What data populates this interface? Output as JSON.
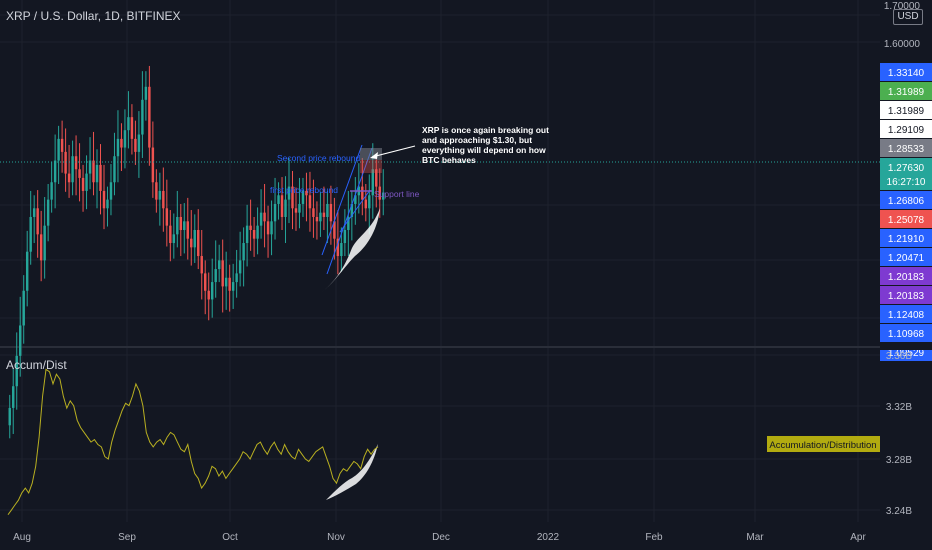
{
  "header": {
    "symbol_title": "XRP / U.S. Dollar, 1D, BITFINEX",
    "currency": "USD"
  },
  "indicator": {
    "title": "Accum/Dist",
    "badge_label": "Accumulation/Distribution",
    "badge_color": "#b2ab10",
    "line_color": "#b9b021"
  },
  "price_axis": {
    "ticks": [
      "1.70000",
      "1.60000"
    ],
    "tags": [
      {
        "text": "1.33140",
        "bg": "#2962ff",
        "fg": "#ffffff"
      },
      {
        "text": "1.31989",
        "bg": "#4caf50",
        "fg": "#ffffff"
      },
      {
        "text": "1.31989",
        "bg": "#ffffff",
        "fg": "#131722"
      },
      {
        "text": "1.29109",
        "bg": "#ffffff",
        "fg": "#131722"
      },
      {
        "text": "1.28533",
        "bg": "#787b86",
        "fg": "#ffffff"
      },
      {
        "text": "1.27630",
        "bg": "#26a69a",
        "fg": "#ffffff",
        "sub": "16:27:10"
      },
      {
        "text": "1.26806",
        "bg": "#2962ff",
        "fg": "#ffffff"
      },
      {
        "text": "1.25078",
        "bg": "#ef5350",
        "fg": "#ffffff"
      },
      {
        "text": "1.21910",
        "bg": "#2962ff",
        "fg": "#ffffff"
      },
      {
        "text": "1.20471",
        "bg": "#2962ff",
        "fg": "#ffffff"
      },
      {
        "text": "1.20183",
        "bg": "#7e3ad1",
        "fg": "#ffffff"
      },
      {
        "text": "1.20183",
        "bg": "#7e3ad1",
        "fg": "#ffffff"
      },
      {
        "text": "1.12408",
        "bg": "#2962ff",
        "fg": "#ffffff"
      },
      {
        "text": "1.10968",
        "bg": "#2962ff",
        "fg": "#ffffff"
      },
      {
        "text": "1.09529",
        "bg": "#2962ff",
        "fg": "#ffffff"
      }
    ]
  },
  "ad_axis": {
    "ticks": [
      "3.36B",
      "3.32B",
      "3.28B",
      "3.24B"
    ]
  },
  "time_axis": {
    "ticks": [
      "Aug",
      "Sep",
      "Oct",
      "Nov",
      "Dec",
      "2022",
      "Feb",
      "Mar",
      "Apr"
    ]
  },
  "annotations": {
    "note": "XRP is once again breaking out and approaching $1.30, but everything will depend on how BTC behaves",
    "second_rebound": "Second price rebound",
    "first_rebound": "first price rebound",
    "support": "Support line"
  },
  "colors": {
    "up": "#26a69a",
    "down": "#ef5350",
    "background": "#131722",
    "grid": "#1e222d",
    "annotation_blue": "#2962ff",
    "annotation_purple": "#7e57c2"
  },
  "chart_data": [
    {
      "type": "candlestick",
      "title": "XRP / U.S. Dollar, 1D, BITFINEX",
      "x_axis": [
        "Aug",
        "Sep",
        "Oct",
        "Nov",
        "Dec",
        "2022",
        "Feb",
        "Mar",
        "Apr"
      ],
      "y_unit": "USD",
      "y_ticks": [
        1.7,
        1.6
      ],
      "last_price": 1.2763,
      "series": [
        {
          "name": "XRP / U.S. Dollar",
          "close": [
            0.78,
            0.83,
            0.9,
            0.97,
            1.05,
            1.14,
            1.22,
            1.24,
            1.18,
            1.12,
            1.2,
            1.26,
            1.3,
            1.35,
            1.4,
            1.37,
            1.32,
            1.3,
            1.36,
            1.33,
            1.31,
            1.28,
            1.32,
            1.35,
            1.3,
            1.34,
            1.28,
            1.24,
            1.26,
            1.3,
            1.36,
            1.4,
            1.38,
            1.42,
            1.45,
            1.4,
            1.37,
            1.41,
            1.49,
            1.52,
            1.38,
            1.3,
            1.26,
            1.28,
            1.24,
            1.2,
            1.16,
            1.18,
            1.22,
            1.19,
            1.21,
            1.17,
            1.15,
            1.19,
            1.13,
            1.09,
            1.05,
            1.03,
            1.07,
            1.1,
            1.12,
            1.06,
            1.08,
            1.05,
            1.07,
            1.09,
            1.12,
            1.16,
            1.2,
            1.19,
            1.17,
            1.2,
            1.23,
            1.21,
            1.18,
            1.21,
            1.25,
            1.27,
            1.22,
            1.26,
            1.29,
            1.24,
            1.23,
            1.25,
            1.28,
            1.27,
            1.24,
            1.22,
            1.21,
            1.23,
            1.22,
            1.25,
            1.21,
            1.17,
            1.13,
            1.16,
            1.19,
            1.22,
            1.25,
            1.27,
            1.29,
            1.26,
            1.24,
            1.27,
            1.33,
            1.29,
            1.26,
            1.2763
          ]
        }
      ]
    },
    {
      "type": "line",
      "title": "Accum/Dist",
      "x_axis": [
        "Aug",
        "Sep",
        "Oct",
        "Nov",
        "Dec",
        "2022",
        "Feb",
        "Mar",
        "Apr"
      ],
      "y_ticks": [
        "3.36B",
        "3.32B",
        "3.28B",
        "3.24B"
      ],
      "ylim_billions": [
        3.232,
        3.362
      ],
      "series": [
        {
          "name": "Accumulation/Distribution",
          "values": [
            3.232,
            3.236,
            3.24,
            3.244,
            3.25,
            3.254,
            3.25,
            3.258,
            3.272,
            3.296,
            3.33,
            3.352,
            3.35,
            3.34,
            3.348,
            3.344,
            3.33,
            3.32,
            3.326,
            3.322,
            3.31,
            3.304,
            3.3,
            3.296,
            3.292,
            3.294,
            3.29,
            3.288,
            3.28,
            3.278,
            3.292,
            3.302,
            3.31,
            3.318,
            3.324,
            3.322,
            3.33,
            3.34,
            3.334,
            3.322,
            3.3,
            3.292,
            3.288,
            3.292,
            3.294,
            3.29,
            3.296,
            3.3,
            3.298,
            3.292,
            3.286,
            3.284,
            3.29,
            3.276,
            3.266,
            3.262,
            3.254,
            3.258,
            3.264,
            3.272,
            3.27,
            3.264,
            3.268,
            3.262,
            3.266,
            3.27,
            3.274,
            3.278,
            3.284,
            3.282,
            3.278,
            3.284,
            3.29,
            3.292,
            3.286,
            3.282,
            3.288,
            3.292,
            3.286,
            3.282,
            3.29,
            3.284,
            3.28,
            3.278,
            3.286,
            3.282,
            3.278,
            3.276,
            3.28,
            3.284,
            3.286,
            3.288,
            3.28,
            3.272,
            3.262,
            3.258,
            3.266,
            3.27,
            3.268,
            3.272,
            3.276,
            3.274,
            3.27,
            3.28,
            3.286,
            3.282,
            3.286,
            3.288
          ]
        }
      ]
    }
  ]
}
